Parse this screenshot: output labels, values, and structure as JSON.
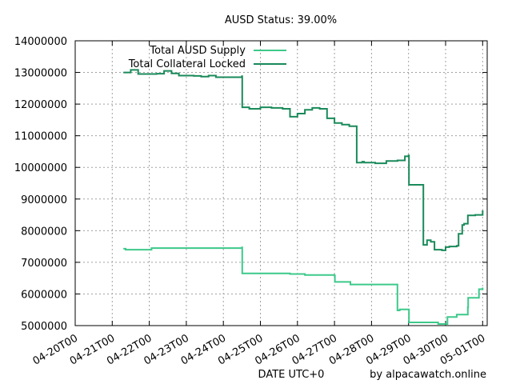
{
  "chart_data": {
    "type": "line",
    "title": "AUSD Status: 39.00%",
    "xlabel": "DATE UTC+0",
    "ylabel": "",
    "credit": "by alpacawatch.online",
    "ylim": [
      5000000,
      14000000
    ],
    "yticks": [
      5000000,
      6000000,
      7000000,
      8000000,
      9000000,
      10000000,
      11000000,
      12000000,
      13000000,
      14000000
    ],
    "ytick_labels": [
      "5000000",
      "6000000",
      "7000000",
      "8000000",
      "9000000",
      "10000000",
      "11000000",
      "12000000",
      "13000000",
      "14000000"
    ],
    "xlim": [
      0,
      10
    ],
    "xtick_labels": [
      "04-20T00",
      "04-21T00",
      "04-22T00",
      "04-23T00",
      "04-24T00",
      "04-25T00",
      "04-26T00",
      "04-27T00",
      "04-28T00",
      "04-29T00",
      "04-30T00",
      "05-01T00"
    ],
    "grid": true,
    "legend_position": "top-left",
    "colors": {
      "supply": "#3cc98a",
      "collateral": "#1a8a5a",
      "grid": "#a0a0a0",
      "axis": "#000000"
    },
    "series": [
      {
        "name": "Total AUSD Supply",
        "color": "#3cc98a",
        "x": [
          0.3,
          0.35,
          0.36,
          1.0,
          1.05,
          1.06,
          1.8,
          2.6,
          3.4,
          3.5,
          3.51,
          4.2,
          4.8,
          5.2,
          5.8,
          6.0,
          6.01,
          6.38,
          6.42,
          6.43,
          7.0,
          7.7,
          7.75,
          7.76,
          8.0,
          8.01,
          8.8,
          9.05,
          9.06,
          9.3,
          9.31,
          9.6,
          9.61,
          9.9,
          10.0
        ],
        "y": [
          7430000,
          7430000,
          7400000,
          7400000,
          7400000,
          7450000,
          7450000,
          7450000,
          7450000,
          7470000,
          6650000,
          6650000,
          6630000,
          6600000,
          6600000,
          6580000,
          6380000,
          6380000,
          6380000,
          6300000,
          6300000,
          5480000,
          5480000,
          5510000,
          5510000,
          5100000,
          5050000,
          5270000,
          5270000,
          5350000,
          5350000,
          5580000,
          5880000,
          6150000,
          6200000
        ]
      },
      {
        "name": "Total Collateral Locked",
        "color": "#1a8a5a",
        "x": [
          0.3,
          0.5,
          0.7,
          1.0,
          1.2,
          1.4,
          1.6,
          1.8,
          2.0,
          2.2,
          2.4,
          2.6,
          2.8,
          3.0,
          3.2,
          3.5,
          3.51,
          3.7,
          4.0,
          4.3,
          4.6,
          4.8,
          5.0,
          5.2,
          5.4,
          5.6,
          5.8,
          6.0,
          6.2,
          6.4,
          6.6,
          6.75,
          6.8,
          7.1,
          7.4,
          7.7,
          7.9,
          8.0,
          8.01,
          8.4,
          8.5,
          8.6,
          8.7,
          8.9,
          9.0,
          9.1,
          9.3,
          9.35,
          9.45,
          9.5,
          9.6,
          9.8,
          10.0
        ],
        "y": [
          13000000,
          13080000,
          12950000,
          12950000,
          12960000,
          13050000,
          12970000,
          12900000,
          12900000,
          12890000,
          12870000,
          12900000,
          12850000,
          12850000,
          12850000,
          12880000,
          11900000,
          11850000,
          11900000,
          11880000,
          11850000,
          11600000,
          11700000,
          11820000,
          11880000,
          11850000,
          11550000,
          11400000,
          11350000,
          11300000,
          10150000,
          10180000,
          10150000,
          10130000,
          10200000,
          10220000,
          10350000,
          10380000,
          9450000,
          7550000,
          7700000,
          7650000,
          7400000,
          7380000,
          7480000,
          7500000,
          7520000,
          7900000,
          8180000,
          8220000,
          8480000,
          8500000,
          8640000
        ]
      }
    ]
  }
}
